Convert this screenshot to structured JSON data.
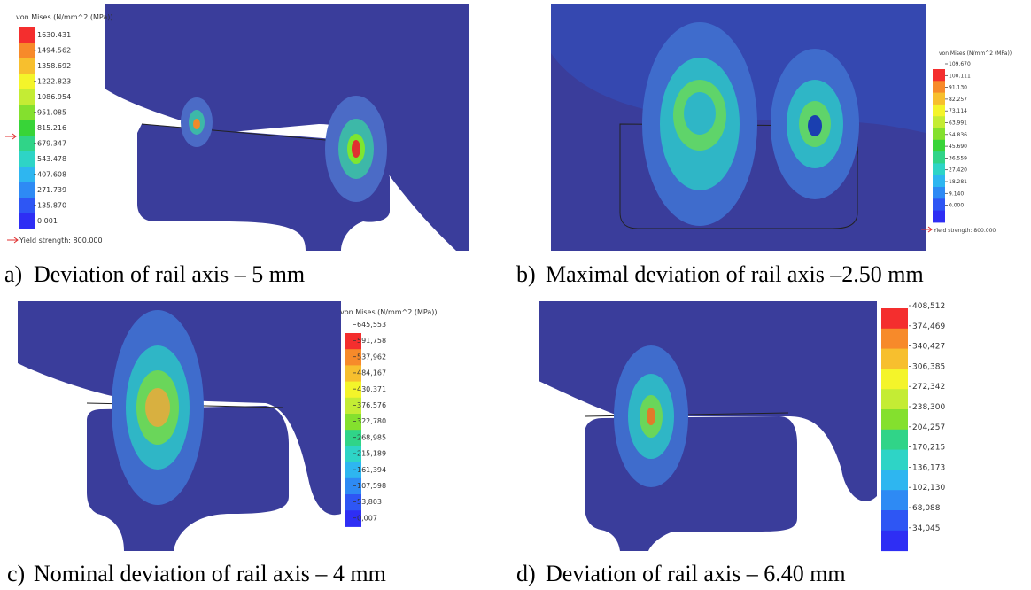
{
  "panels": [
    {
      "label": "a)",
      "caption": "Deviation of rail axis – 5 mm",
      "legend": {
        "title": "von Mises (N/mm^2 (MPa))",
        "values": [
          "1630.431",
          "1494.562",
          "1358.692",
          "1222.823",
          "1086.954",
          "951.085",
          "815.216",
          "679.347",
          "543.478",
          "407.608",
          "271.739",
          "135.870",
          "0.001"
        ],
        "yield": "Yield strength: 800.000"
      }
    },
    {
      "label": "b)",
      "caption": "Maximal deviation of rail axis –2.50 mm",
      "legend": {
        "title": "von Mises (N/mm^2 (MPa))",
        "values": [
          "109.670",
          "100.111",
          "91.130",
          "82.257",
          "73.114",
          "63.991",
          "54.836",
          "45.690",
          "36.559",
          "27.420",
          "18.281",
          "9.140",
          "0.000"
        ],
        "yield": "Yield strength: 800.000"
      }
    },
    {
      "label": "c)",
      "caption": "Nominal deviation of rail axis – 4 mm",
      "legend": {
        "title": "von Mises (N/mm^2 (MPa))",
        "values": [
          "645,553",
          "591,758",
          "537,962",
          "484,167",
          "430,371",
          "376,576",
          "322,780",
          "268,985",
          "215,189",
          "161,394",
          "107,598",
          "53,803",
          "0,007"
        ]
      }
    },
    {
      "label": "d)",
      "caption": "Deviation of rail axis – 6.40 mm",
      "legend": {
        "values": [
          "408,512",
          "374,469",
          "340,427",
          "306,385",
          "272,342",
          "238,300",
          "204,257",
          "170,215",
          "136,173",
          "102,130",
          "68,088",
          "34,045"
        ]
      }
    }
  ]
}
